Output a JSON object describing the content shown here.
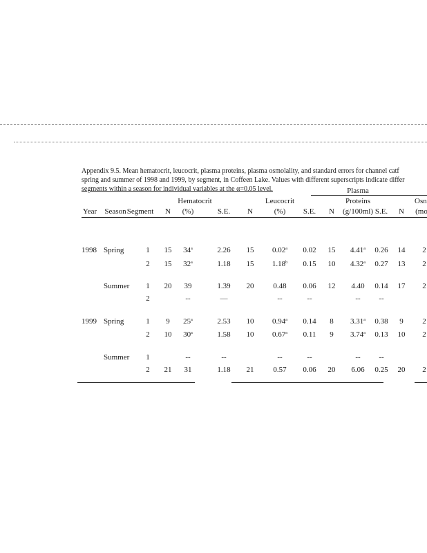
{
  "caption": [
    "Appendix 9.5.  Mean hematocrit, leucocrit, plasma proteins, plasma osmolality, and standard errors for channel catf",
    "spring and summer of 1998 and 1999, by segment, in Coffeen Lake. Values with different superscripts indicate differ",
    "segments within a season for individual variables at the α=0.05 level."
  ],
  "headers": {
    "group_hematocrit": "Hematocrit",
    "group_leucocrit": "Leucocrit",
    "group_plasma_1": "Plasma",
    "group_plasma_2": "Proteins",
    "group_osm": "Osn",
    "cols": [
      "Year",
      "Season",
      "Segment",
      "N",
      "(%)",
      "S.E.",
      "N",
      "(%)",
      "S.E.",
      "N",
      "(g/100ml)",
      "S.E.",
      "N",
      "(mo"
    ]
  },
  "rows": [
    {
      "year": "1998",
      "season": "Spring",
      "segment": "1",
      "hn": "15",
      "hct": "34",
      "hct_sup": "a",
      "hse": "2.26",
      "ln": "15",
      "leu": "0.02",
      "leu_sup": "a",
      "lse": "0.02",
      "pn": "15",
      "pp": "4.41",
      "pp_sup": "a",
      "pse": "0.26",
      "on": "14",
      "osm": "2"
    },
    {
      "year": "",
      "season": "",
      "segment": "2",
      "hn": "15",
      "hct": "32",
      "hct_sup": "a",
      "hse": "1.18",
      "ln": "15",
      "leu": "1.18",
      "leu_sup": "b",
      "lse": "0.15",
      "pn": "10",
      "pp": "4.32",
      "pp_sup": "a",
      "pse": "0.27",
      "on": "13",
      "osm": "2"
    },
    {
      "year": "",
      "season": "Summer",
      "segment": "1",
      "hn": "20",
      "hct": "39",
      "hct_sup": "",
      "hse": "1.39",
      "ln": "20",
      "leu": "0.48",
      "leu_sup": "",
      "lse": "0.06",
      "pn": "12",
      "pp": "4.40",
      "pp_sup": "",
      "pse": "0.14",
      "on": "17",
      "osm": "2"
    },
    {
      "year": "",
      "season": "",
      "segment": "2",
      "hn": "",
      "hct": "--",
      "hct_sup": "",
      "hse": "—",
      "ln": "",
      "leu": "--",
      "leu_sup": "",
      "lse": "--",
      "pn": "",
      "pp": "--",
      "pp_sup": "",
      "pse": "--",
      "on": "",
      "osm": ""
    },
    {
      "year": "1999",
      "season": "Spring",
      "segment": "1",
      "hn": "9",
      "hct": "25",
      "hct_sup": "a",
      "hse": "2.53",
      "ln": "10",
      "leu": "0.94",
      "leu_sup": "a",
      "lse": "0.14",
      "pn": "8",
      "pp": "3.31",
      "pp_sup": "a",
      "pse": "0.38",
      "on": "9",
      "osm": "2"
    },
    {
      "year": "",
      "season": "",
      "segment": "2",
      "hn": "10",
      "hct": "30",
      "hct_sup": "a",
      "hse": "1.58",
      "ln": "10",
      "leu": "0.67",
      "leu_sup": "a",
      "lse": "0.11",
      "pn": "9",
      "pp": "3.74",
      "pp_sup": "a",
      "pse": "0.13",
      "on": "10",
      "osm": "2"
    },
    {
      "year": "",
      "season": "Summer",
      "segment": "1",
      "hn": "",
      "hct": "--",
      "hct_sup": "",
      "hse": "--",
      "ln": "",
      "leu": "--",
      "leu_sup": "",
      "lse": "--",
      "pn": "",
      "pp": "--",
      "pp_sup": "",
      "pse": "--",
      "on": "",
      "osm": ""
    },
    {
      "year": "",
      "season": "",
      "segment": "2",
      "hn": "21",
      "hct": "31",
      "hct_sup": "",
      "hse": "1.18",
      "ln": "21",
      "leu": "0.57",
      "leu_sup": "",
      "lse": "0.06",
      "pn": "20",
      "pp": "6.06",
      "pp_sup": "",
      "pse": "0.25",
      "on": "20",
      "osm": "2"
    }
  ]
}
